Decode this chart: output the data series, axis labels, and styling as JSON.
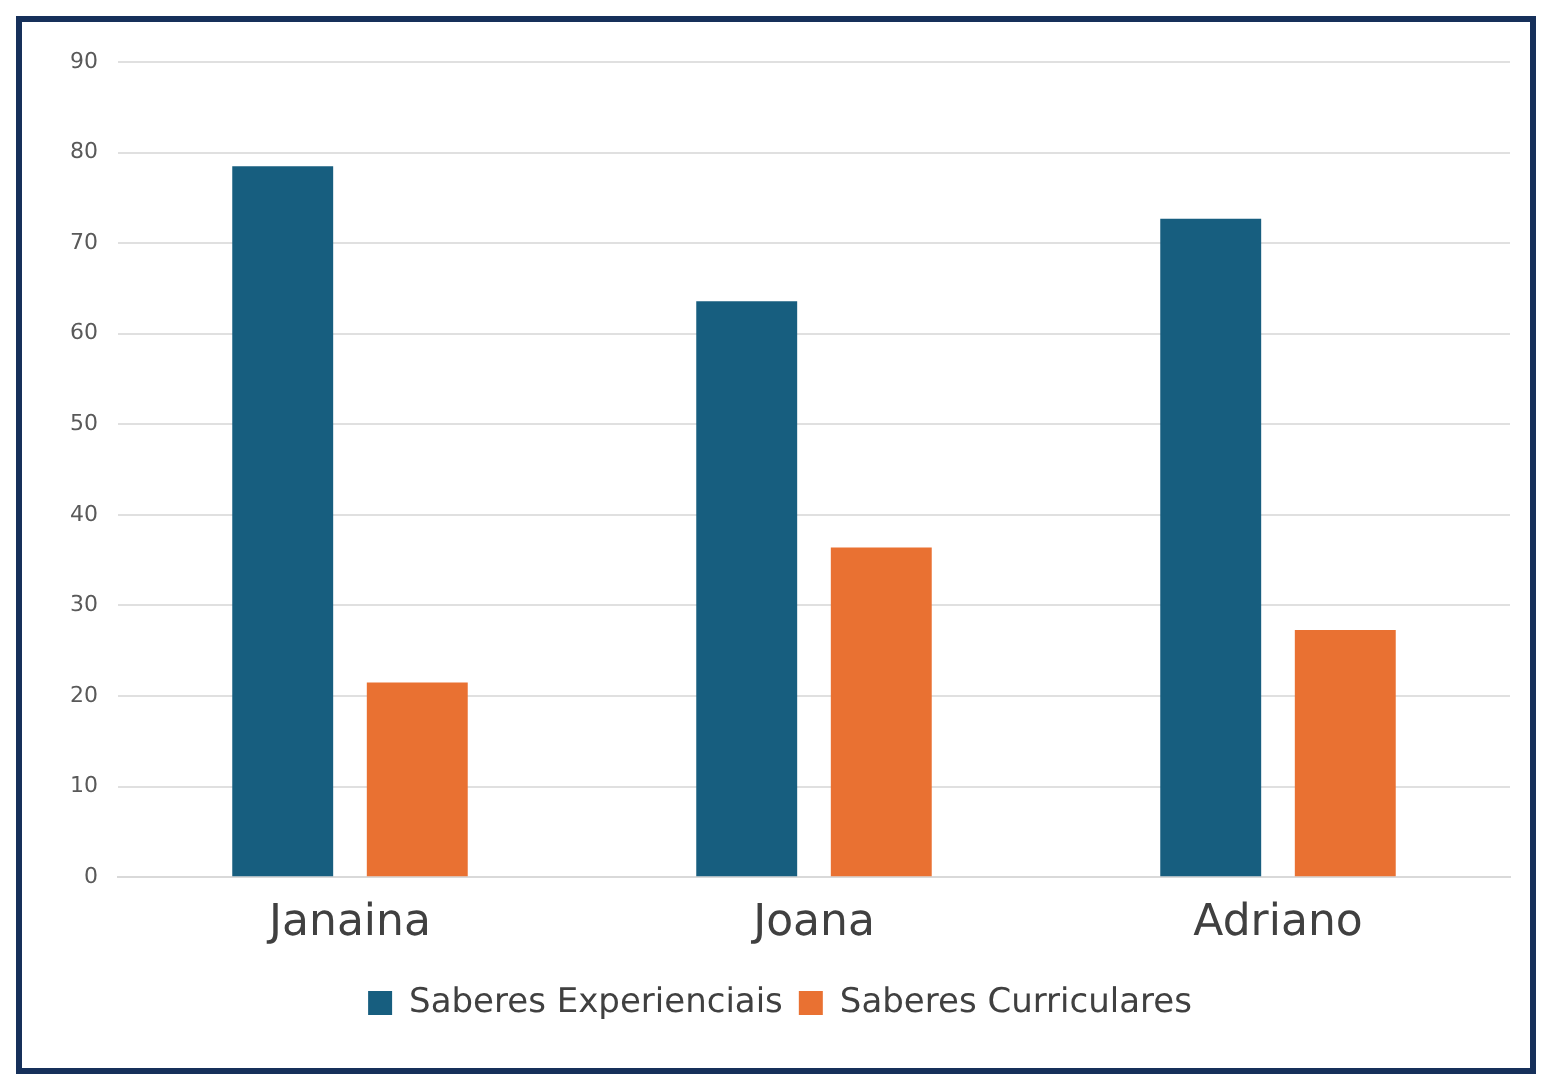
{
  "chart_data": {
    "type": "bar",
    "categories": [
      "Janaina",
      "Joana",
      "Adriano"
    ],
    "series": [
      {
        "name": "Saberes Experienciais",
        "color": "#175e7f",
        "values": [
          78.5,
          63.6,
          72.7
        ]
      },
      {
        "name": "Saberes Curriculares",
        "color": "#e97132",
        "values": [
          21.5,
          36.4,
          27.3
        ]
      }
    ],
    "ylim": [
      0,
      90
    ],
    "yticks": [
      0,
      10,
      20,
      30,
      40,
      50,
      60,
      70,
      80,
      90
    ],
    "grid": "y",
    "legend": "bottom"
  }
}
